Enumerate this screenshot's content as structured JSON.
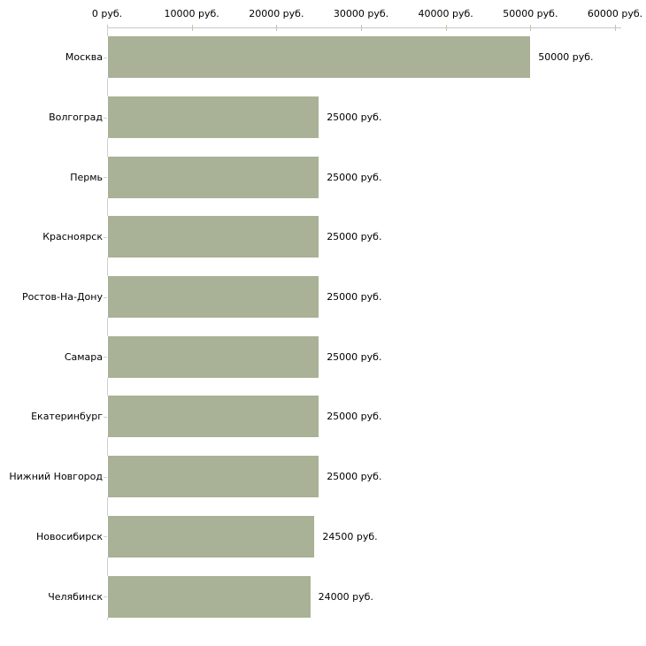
{
  "chart_data": {
    "type": "bar",
    "orientation": "horizontal",
    "title": "",
    "xlabel": "",
    "ylabel": "",
    "grid": false,
    "legend": false,
    "categories": [
      "Москва",
      "Волгоград",
      "Пермь",
      "Красноярск",
      "Ростов-На-Дону",
      "Самара",
      "Екатеринбург",
      "Нижний Новгород",
      "Новосибирск",
      "Челябинск"
    ],
    "values": [
      50000,
      25000,
      25000,
      25000,
      25000,
      25000,
      25000,
      25000,
      24500,
      24000
    ],
    "value_labels": [
      "50000 руб.",
      "25000 руб.",
      "25000 руб.",
      "25000 руб.",
      "25000 руб.",
      "25000 руб.",
      "25000 руб.",
      "25000 руб.",
      "24500 руб.",
      "24000 руб."
    ],
    "x_axis": {
      "position": "top",
      "min": 0,
      "max": 60000,
      "tick_step": 10000,
      "tick_labels": [
        "0 руб.",
        "10000 руб.",
        "20000 руб.",
        "30000 руб.",
        "40000 руб.",
        "50000 руб.",
        "60000 руб."
      ]
    },
    "colors": {
      "bar_fill": "#a9b196",
      "axis_line": "#c9c9c9",
      "y_axis_line": "#d0d0d0",
      "tick_mark": "#c6c6a2",
      "text": "#000000",
      "background": "#ffffff"
    }
  }
}
